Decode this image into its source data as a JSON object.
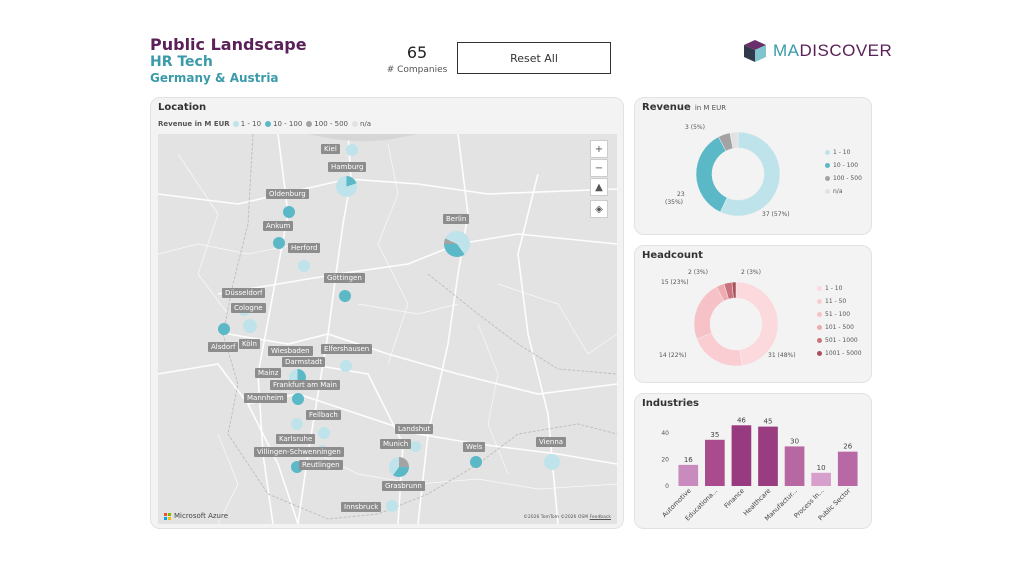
{
  "header": {
    "title": "Public Landscape",
    "subtitle": "HR Tech",
    "region": "Germany & Austria",
    "company_count": "65",
    "company_count_label": "# Companies",
    "reset_label": "Reset All",
    "logo_ma": "MA",
    "logo_discover": "DISCOVER",
    "logo_icon": "cube-icon"
  },
  "map": {
    "title": "Location",
    "legend_title": "Revenue in M EUR",
    "legend": [
      {
        "label": "1 - 10",
        "color": "#bfe3ea"
      },
      {
        "label": "10 - 100",
        "color": "#5bb8c6"
      },
      {
        "label": "100 - 500",
        "color": "#a3a3a3"
      },
      {
        "label": "n/a",
        "color": "#e2e2e2"
      }
    ],
    "controls": [
      {
        "name": "zoom-in-button",
        "glyph": "+"
      },
      {
        "name": "zoom-out-button",
        "glyph": "−"
      },
      {
        "name": "tilt-button",
        "glyph": "▲"
      },
      {
        "name": "compass-button",
        "glyph": "◈"
      }
    ],
    "brand": "Microsoft Azure",
    "attribution": "©2026 TomTom ©2026 OSM",
    "feedback": "Feedback",
    "cities": [
      {
        "name": "Kiel"
      },
      {
        "name": "Hamburg"
      },
      {
        "name": "Oldenburg"
      },
      {
        "name": "Berlin"
      },
      {
        "name": "Ankum"
      },
      {
        "name": "Herford"
      },
      {
        "name": "Göttingen"
      },
      {
        "name": "Düsseldorf"
      },
      {
        "name": "Cologne"
      },
      {
        "name": "Alsdorf"
      },
      {
        "name": "Köln"
      },
      {
        "name": "Wiesbaden"
      },
      {
        "name": "Elfershausen"
      },
      {
        "name": "Darmstadt"
      },
      {
        "name": "Mainz"
      },
      {
        "name": "Frankfurt am Main"
      },
      {
        "name": "Mannheim"
      },
      {
        "name": "Fellbach"
      },
      {
        "name": "Landshut"
      },
      {
        "name": "Karlsruhe"
      },
      {
        "name": "Munich"
      },
      {
        "name": "Wels"
      },
      {
        "name": "Vienna"
      },
      {
        "name": "Villingen-Schwenningen"
      },
      {
        "name": "Reutlingen"
      },
      {
        "name": "Grasbrunn"
      },
      {
        "name": "Innsbruck"
      }
    ]
  },
  "revenue": {
    "title": "Revenue",
    "unit": "in M EUR",
    "slices": [
      {
        "label": "1 - 10",
        "value": 37,
        "pct": "57%",
        "color": "#bfe3ea"
      },
      {
        "label": "10 - 100",
        "value": 23,
        "pct": "35%",
        "color": "#5bb8c6"
      },
      {
        "label": "100 - 500",
        "value": 3,
        "pct": "5%",
        "color": "#a3a3a3"
      },
      {
        "label": "n/a",
        "value": 2,
        "pct": "",
        "color": "#e2e2e2"
      }
    ],
    "labels": {
      "a": "37 (57%)",
      "b": "23",
      "b2": "(35%)",
      "c": "3 (5%)"
    }
  },
  "headcount": {
    "title": "Headcount",
    "slices": [
      {
        "label": "1 - 10",
        "value": 31,
        "color": "#fcd9dc"
      },
      {
        "label": "11 - 50",
        "value": 14,
        "color": "#f9cdd1"
      },
      {
        "label": "51 - 100",
        "value": 15,
        "color": "#f6c2c7"
      },
      {
        "label": "101 - 500",
        "value": 2,
        "color": "#f0aab1"
      },
      {
        "label": "501 - 1000",
        "value": 2,
        "color": "#c9737d"
      },
      {
        "label": "1001 - 5000",
        "value": 1,
        "color": "#a8505b"
      }
    ],
    "labels": {
      "a": "31 (48%)",
      "b": "14 (22%)",
      "c": "15 (23%)",
      "d": "2 (3%)",
      "e": "2 (3%)"
    }
  },
  "industries": {
    "title": "Industries",
    "chart_data": {
      "type": "bar",
      "categories": [
        "Automotive",
        "Educationa...",
        "Finance",
        "Healthcare",
        "Manufactur...",
        "Process In...",
        "Public Sector"
      ],
      "values": [
        16,
        35,
        46,
        45,
        30,
        10,
        26
      ],
      "colors": [
        "#c98bbd",
        "#a94b8c",
        "#983a7f",
        "#9a3c80",
        "#b768a3",
        "#d7a0cc",
        "#b968a6"
      ],
      "ylim": [
        0,
        50
      ],
      "yticks": [
        0,
        20,
        40
      ]
    }
  }
}
